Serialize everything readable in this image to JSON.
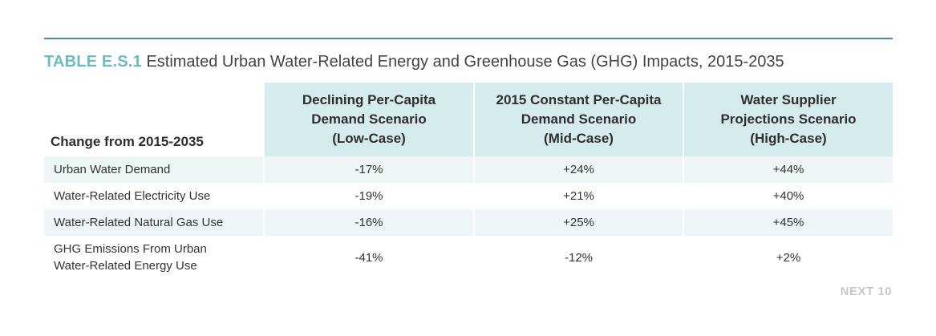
{
  "table": {
    "label": "TABLE E.S.1",
    "title": "Estimated Urban Water-Related Energy and Greenhouse Gas (GHG) Impacts, 2015-2035",
    "corner_header": "Change from 2015-2035",
    "columns": [
      {
        "lines": [
          "Declining Per-Capita",
          "Demand Scenario",
          "(Low-Case)"
        ]
      },
      {
        "lines": [
          "2015 Constant Per-Capita",
          "Demand Scenario",
          "(Mid-Case)"
        ]
      },
      {
        "lines": [
          "Water Supplier",
          "Projections Scenario",
          "(High-Case)"
        ]
      }
    ],
    "rows": [
      {
        "label": [
          "Urban Water Demand"
        ],
        "values": [
          "-17%",
          "+24%",
          "+44%"
        ]
      },
      {
        "label": [
          "Water-Related Electricity Use"
        ],
        "values": [
          "-19%",
          "+21%",
          "+40%"
        ]
      },
      {
        "label": [
          "Water-Related Natural Gas Use"
        ],
        "values": [
          "-16%",
          "+25%",
          "+45%"
        ]
      },
      {
        "label": [
          "GHG Emissions From Urban",
          "Water-Related Energy Use"
        ],
        "values": [
          "-41%",
          "-12%",
          "+2%"
        ]
      }
    ]
  },
  "source": "NEXT 10",
  "colors": {
    "accent_teal": "#6cbcc0",
    "rule": "#4d8ea1",
    "header_fill": "#d6ebee",
    "row_fill": "#eef5f7"
  }
}
